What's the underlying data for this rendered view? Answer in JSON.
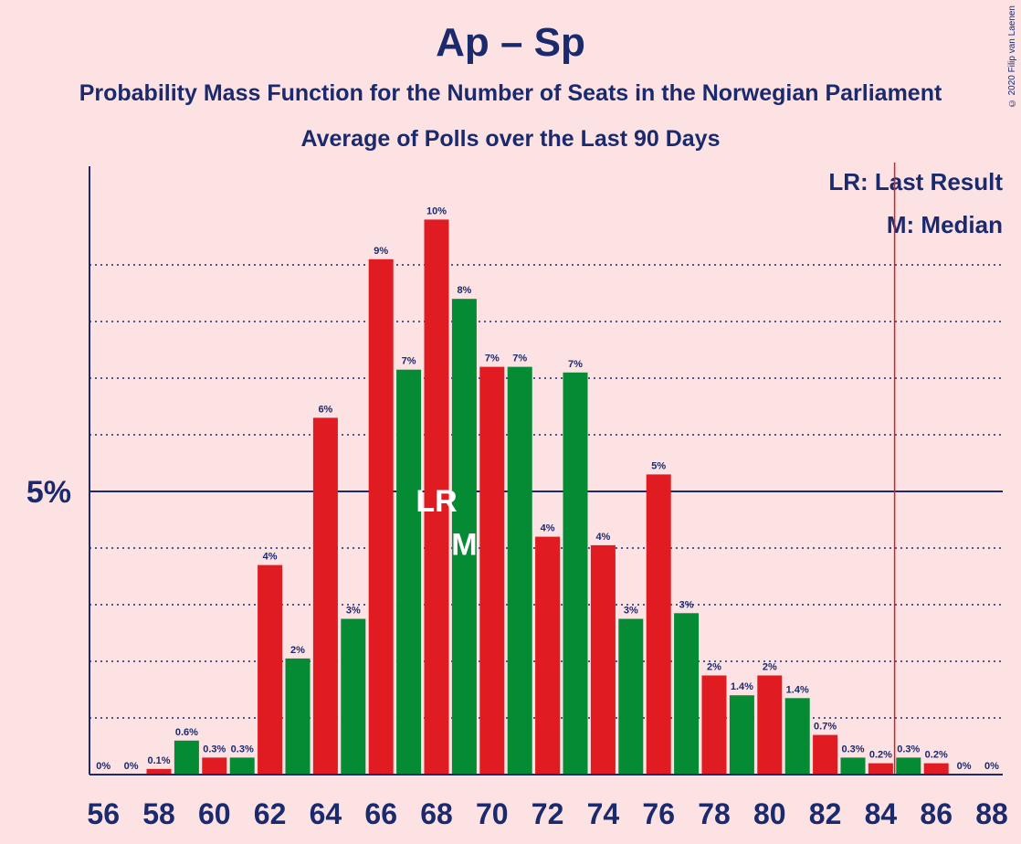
{
  "title": "Ap – Sp",
  "subtitle": "Probability Mass Function for the Number of Seats in the Norwegian Parliament",
  "subtitle2": "Average of Polls over the Last 90 Days",
  "copyright": "© 2020 Filip van Laenen",
  "legend": {
    "lr": "LR: Last Result",
    "m": "M: Median"
  },
  "colors": {
    "red": "#e01b22",
    "green": "#048b33",
    "navy": "#1a2a6c",
    "background": "#fde2e4"
  },
  "chart_data": {
    "type": "bar",
    "x": [
      56,
      57,
      58,
      59,
      60,
      61,
      62,
      63,
      64,
      65,
      66,
      67,
      68,
      69,
      70,
      71,
      72,
      73,
      74,
      75,
      76,
      77,
      78,
      79,
      80,
      81,
      82,
      83,
      84,
      85,
      86,
      87,
      88
    ],
    "values": [
      0,
      0,
      0.1,
      0.6,
      0.3,
      0.3,
      3.7,
      2.05,
      6.3,
      2.75,
      9.1,
      7.15,
      9.8,
      8.4,
      7.2,
      7.2,
      4.2,
      7.1,
      4.05,
      2.75,
      5.3,
      2.85,
      1.75,
      1.4,
      1.75,
      1.35,
      0.7,
      0.3,
      0.2,
      0.3,
      0.2,
      0,
      0
    ],
    "labels": [
      "0%",
      "0%",
      "0.1%",
      "0.6%",
      "0.3%",
      "0.3%",
      "4%",
      "2%",
      "6%",
      "3%",
      "9%",
      "7%",
      "10%",
      "8%",
      "7%",
      "7%",
      "4%",
      "7%",
      "4%",
      "3%",
      "5%",
      "3%",
      "2%",
      "1.4%",
      "2%",
      "1.4%",
      "0.7%",
      "0.3%",
      "0.2%",
      "0.3%",
      "0.2%",
      "0%",
      "0%"
    ],
    "xticks": [
      56,
      58,
      60,
      62,
      64,
      66,
      68,
      70,
      72,
      74,
      76,
      78,
      80,
      82,
      84,
      86,
      88
    ],
    "ylabel_tick": "5%",
    "ytick_value": 5,
    "last_result": 68,
    "last_result_marker": "LR",
    "median": 69,
    "median_marker": "M",
    "majority_line": 84.5,
    "ylim": [
      0,
      10.7
    ]
  }
}
